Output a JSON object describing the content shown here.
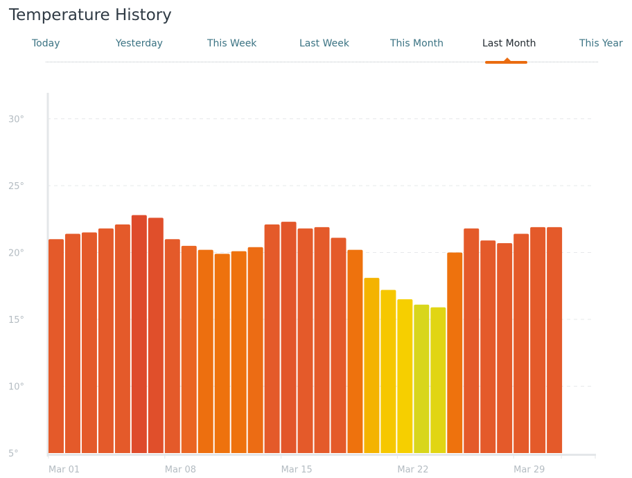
{
  "header": {
    "title": "Temperature History"
  },
  "tabs": [
    {
      "label": "Today",
      "active": false
    },
    {
      "label": "Yesterday",
      "active": false
    },
    {
      "label": "This Week",
      "active": false
    },
    {
      "label": "Last Week",
      "active": false
    },
    {
      "label": "This Month",
      "active": false
    },
    {
      "label": "Last Month",
      "active": true
    },
    {
      "label": "This Year",
      "active": false
    }
  ],
  "colors": {
    "accent": "#ea6c10",
    "tab_text": "#3b7383",
    "tab_active_text": "#222a30",
    "axis": "#e4e7e9",
    "grid": "#e6e8ea",
    "tick_text": "#b4bcc2"
  },
  "chart_data": {
    "type": "bar",
    "title": "",
    "xlabel": "",
    "ylabel": "",
    "ylim": [
      5,
      32
    ],
    "yticks": [
      5,
      10,
      15,
      20,
      25,
      30
    ],
    "ytick_labels": [
      "5°",
      "10°",
      "15°",
      "20°",
      "25°",
      "30°"
    ],
    "grid": true,
    "xtick_labels": [
      "Mar 01",
      "Mar 08",
      "Mar 15",
      "Mar 22",
      "Mar 29"
    ],
    "categories": [
      "Mar 01",
      "Mar 02",
      "Mar 03",
      "Mar 04",
      "Mar 05",
      "Mar 06",
      "Mar 07",
      "Mar 08",
      "Mar 09",
      "Mar 10",
      "Mar 11",
      "Mar 12",
      "Mar 13",
      "Mar 14",
      "Mar 15",
      "Mar 16",
      "Mar 17",
      "Mar 18",
      "Mar 19",
      "Mar 20",
      "Mar 21",
      "Mar 22",
      "Mar 23",
      "Mar 24",
      "Mar 25",
      "Mar 26",
      "Mar 27",
      "Mar 28",
      "Mar 29",
      "Mar 30",
      "Mar 31"
    ],
    "values": [
      21.0,
      21.4,
      21.5,
      21.8,
      22.1,
      22.8,
      22.6,
      21.0,
      20.5,
      20.2,
      19.9,
      20.1,
      20.4,
      22.1,
      22.3,
      21.8,
      21.9,
      21.1,
      20.2,
      18.1,
      17.2,
      16.5,
      16.1,
      15.9,
      20.0,
      21.8,
      20.9,
      20.7,
      21.4,
      21.9,
      21.9
    ],
    "bar_colors": [
      "#e45a2a",
      "#e45a2a",
      "#e45a2a",
      "#e45a2a",
      "#e45a2a",
      "#de4a2b",
      "#e04f2b",
      "#e45a2a",
      "#ea6522",
      "#ed6f0f",
      "#ee720d",
      "#ee720d",
      "#ec6c14",
      "#e45a2a",
      "#e2562a",
      "#e45a2a",
      "#e45a2a",
      "#e45a2a",
      "#ee720d",
      "#f4b300",
      "#f6c700",
      "#f6cf00",
      "#d8d61c",
      "#e1d513",
      "#ee720d",
      "#e45a2a",
      "#e45a2a",
      "#e45a2a",
      "#e45a2a",
      "#e45a2a",
      "#e45a2a"
    ]
  }
}
